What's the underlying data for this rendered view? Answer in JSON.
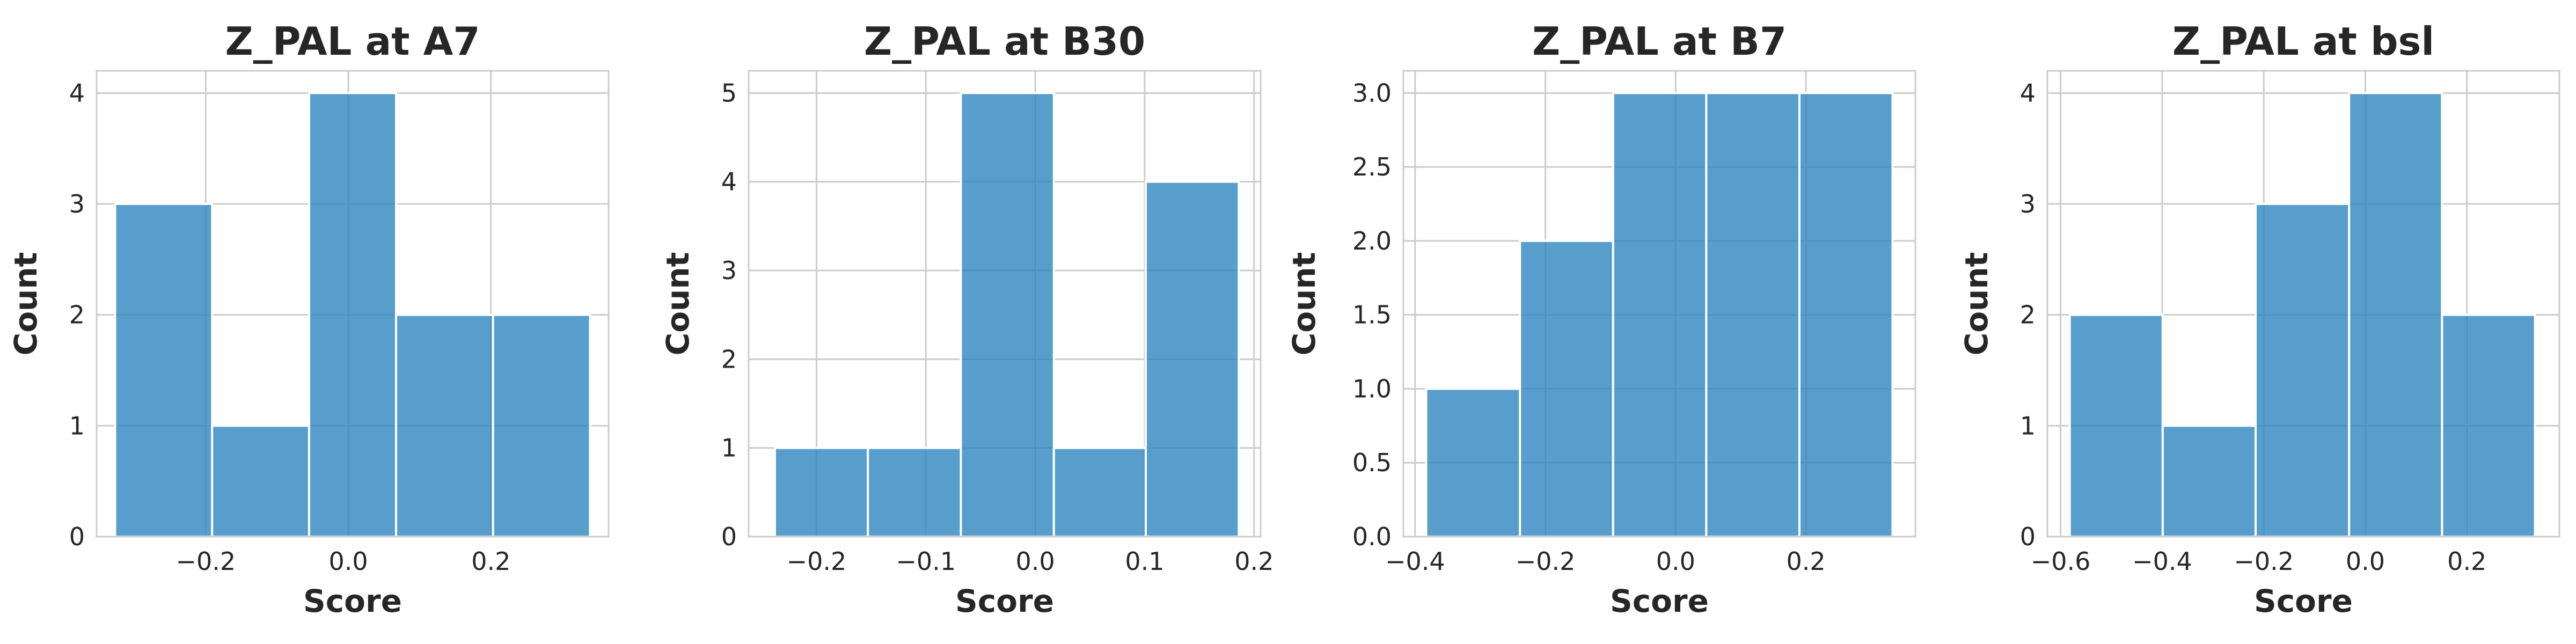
{
  "chart_data": [
    {
      "type": "histogram",
      "title": "Z_PAL at A7",
      "xlabel": "Score",
      "ylabel": "Count",
      "xlim": [
        -0.353,
        0.365
      ],
      "ylim": [
        0,
        4.2
      ],
      "xticks": [
        -0.2,
        0.0,
        0.2
      ],
      "xtick_labels": [
        "−0.2",
        "0.0",
        "0.2"
      ],
      "yticks": [
        0,
        1,
        2,
        3,
        4
      ],
      "ytick_labels": [
        "0",
        "1",
        "2",
        "3",
        "4"
      ],
      "bin_edges": [
        -0.327,
        -0.191,
        -0.055,
        0.067,
        0.203,
        0.339
      ],
      "counts": [
        3,
        1,
        4,
        2,
        2
      ],
      "grid": true,
      "color": "#2e86c1"
    },
    {
      "type": "histogram",
      "title": "Z_PAL at B30",
      "xlabel": "Score",
      "ylabel": "Count",
      "xlim": [
        -0.262,
        0.206
      ],
      "ylim": [
        0,
        5.25
      ],
      "xticks": [
        -0.2,
        -0.1,
        0.0,
        0.1,
        0.2
      ],
      "xtick_labels": [
        "−0.2",
        "−0.1",
        "0.0",
        "0.1",
        "0.2"
      ],
      "yticks": [
        0,
        1,
        2,
        3,
        4,
        5
      ],
      "ytick_labels": [
        "0",
        "1",
        "2",
        "3",
        "4",
        "5"
      ],
      "bin_edges": [
        -0.238,
        -0.153,
        -0.068,
        0.017,
        0.101,
        0.186
      ],
      "counts": [
        1,
        1,
        5,
        1,
        4
      ],
      "grid": true,
      "color": "#2e86c1"
    },
    {
      "type": "histogram",
      "title": "Z_PAL at B7",
      "xlabel": "Score",
      "ylabel": "Count",
      "xlim": [
        -0.418,
        0.368
      ],
      "ylim": [
        0,
        3.15
      ],
      "xticks": [
        -0.4,
        -0.2,
        0.0,
        0.2
      ],
      "xtick_labels": [
        "−0.4",
        "−0.2",
        "0.0",
        "0.2"
      ],
      "yticks": [
        0,
        0.5,
        1,
        1.5,
        2,
        2.5,
        3
      ],
      "ytick_labels": [
        "0.0",
        "0.5",
        "1.0",
        "1.5",
        "2.0",
        "2.5",
        "3.0"
      ],
      "bin_edges": [
        -0.383,
        -0.239,
        -0.096,
        0.047,
        0.19,
        0.333
      ],
      "counts": [
        1,
        2,
        3,
        3,
        3
      ],
      "grid": true,
      "color": "#2e86c1"
    },
    {
      "type": "histogram",
      "title": "Z_PAL at bsl",
      "xlabel": "Score",
      "ylabel": "Count",
      "xlim": [
        -0.626,
        0.382
      ],
      "ylim": [
        0,
        4.2
      ],
      "xticks": [
        -0.6,
        -0.4,
        -0.2,
        0.0,
        0.2
      ],
      "xtick_labels": [
        "−0.6",
        "−0.4",
        "−0.2",
        "0.0",
        "0.2"
      ],
      "yticks": [
        0,
        1,
        2,
        3,
        4
      ],
      "ytick_labels": [
        "0",
        "1",
        "2",
        "3",
        "4"
      ],
      "bin_edges": [
        -0.582,
        -0.399,
        -0.216,
        -0.032,
        0.151,
        0.334
      ],
      "counts": [
        2,
        1,
        3,
        4,
        2
      ],
      "grid": true,
      "color": "#2e86c1"
    }
  ]
}
